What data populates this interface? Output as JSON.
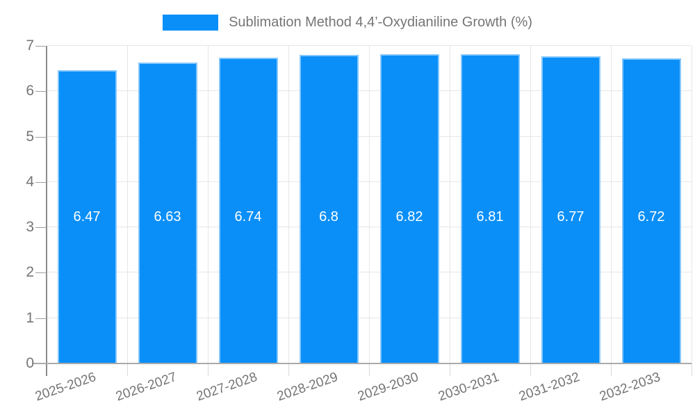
{
  "colors": {
    "bar": "#0a8ff8",
    "grid": "#e6e6e6",
    "tick_below": "#d9d9d9",
    "axis": "#9e9e9e",
    "axis_text": "#757575",
    "value_text": "#ffffff",
    "background": "#ffffff"
  },
  "chart_data": {
    "type": "bar",
    "title": "Sublimation Method 4,4’-Oxydianiline Growth (%)",
    "legend_position": "top",
    "categories": [
      "2025-2026",
      "2026-2027",
      "2027-2028",
      "2028-2029",
      "2029-2030",
      "2030-2031",
      "2031-2032",
      "2032-2033"
    ],
    "values": [
      6.47,
      6.63,
      6.74,
      6.8,
      6.82,
      6.81,
      6.77,
      6.72
    ],
    "value_labels": [
      "6.47",
      "6.63",
      "6.74",
      "6.8",
      "6.82",
      "6.81",
      "6.77",
      "6.72"
    ],
    "xlabel": "",
    "ylabel": "",
    "ylim": [
      0,
      7
    ],
    "yticks": [
      0,
      1,
      2,
      3,
      4,
      5,
      6,
      7
    ],
    "grid": true
  }
}
